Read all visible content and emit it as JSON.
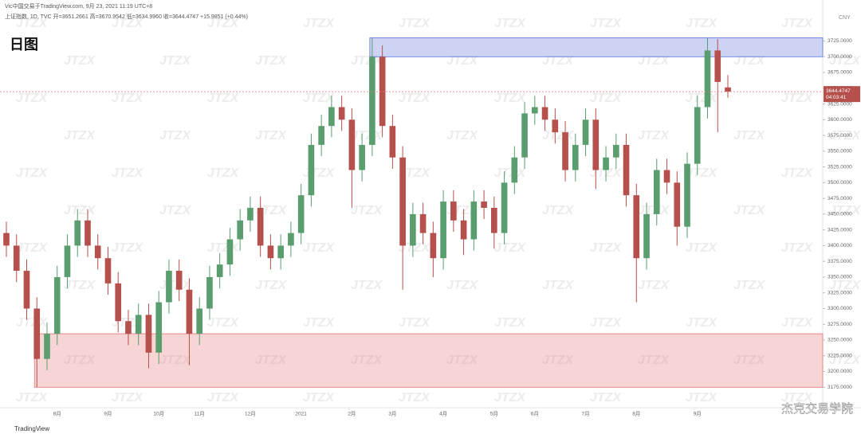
{
  "chart_data": {
    "type": "candlestick",
    "title": "日图",
    "header": "Vic中国交易于TradingView.com, 9月 23, 2021 11:19 UTC+8",
    "symbol_line": "上证指数, 1D, TVC  开=3651.2661  高=3670.9542  低=3634.9960  收=3644.4747  +15.9851 (+0.44%)",
    "currency": "CNY",
    "price_label": "3644.4747",
    "countdown": "04:03:41",
    "watermark": "JTZX",
    "footer": "TradingView",
    "credit": "杰克交易学院",
    "up_color": "#5a9e6f",
    "down_color": "#b5504c",
    "categories": [
      null,
      null,
      null,
      null,
      null,
      "8月",
      null,
      null,
      null,
      null,
      "9月",
      null,
      null,
      null,
      null,
      "10月",
      null,
      null,
      null,
      "11月",
      null,
      null,
      null,
      null,
      "12月",
      null,
      null,
      null,
      null,
      "2021",
      null,
      null,
      null,
      null,
      "2月",
      null,
      null,
      null,
      "3月",
      null,
      null,
      null,
      null,
      "4月",
      null,
      null,
      null,
      null,
      "5月",
      null,
      null,
      null,
      "6月",
      null,
      null,
      null,
      null,
      "7月",
      null,
      null,
      null,
      null,
      "8月",
      null,
      null,
      null,
      null,
      null,
      "9月",
      null,
      null,
      null
    ],
    "open": [
      3420,
      3400,
      3360,
      3300,
      3220,
      3260,
      3350,
      3400,
      3440,
      3400,
      3380,
      3340,
      3280,
      3260,
      3290,
      3230,
      3310,
      3360,
      3330,
      3260,
      3300,
      3350,
      3370,
      3410,
      3440,
      3460,
      3400,
      3380,
      3400,
      3420,
      3480,
      3560,
      3590,
      3620,
      3600,
      3520,
      3560,
      3700,
      3590,
      3540,
      3400,
      3450,
      3420,
      3380,
      3470,
      3440,
      3410,
      3470,
      3460,
      3420,
      3500,
      3540,
      3610,
      3620,
      3600,
      3580,
      3520,
      3560,
      3600,
      3520,
      3540,
      3560,
      3480,
      3380,
      3450,
      3520,
      3500,
      3430,
      3530,
      3620,
      3710,
      3651.2661
    ],
    "high": [
      3438,
      3418,
      3378,
      3318,
      3278,
      3368,
      3418,
      3458,
      3458,
      3418,
      3398,
      3358,
      3298,
      3308,
      3308,
      3328,
      3378,
      3378,
      3348,
      3318,
      3368,
      3388,
      3428,
      3458,
      3478,
      3478,
      3418,
      3418,
      3438,
      3498,
      3578,
      3608,
      3638,
      3638,
      3618,
      3578,
      3730,
      3718,
      3608,
      3558,
      3468,
      3468,
      3438,
      3488,
      3488,
      3458,
      3488,
      3488,
      3478,
      3518,
      3558,
      3628,
      3638,
      3638,
      3618,
      3598,
      3578,
      3618,
      3618,
      3558,
      3578,
      3578,
      3498,
      3468,
      3538,
      3538,
      3518,
      3548,
      3638,
      3730,
      3728,
      3670.9542
    ],
    "low": [
      3382,
      3342,
      3282,
      3175,
      3202,
      3242,
      3332,
      3382,
      3382,
      3362,
      3322,
      3262,
      3242,
      3242,
      3205,
      3212,
      3292,
      3312,
      3210,
      3242,
      3282,
      3332,
      3352,
      3392,
      3422,
      3382,
      3362,
      3362,
      3382,
      3402,
      3462,
      3542,
      3572,
      3582,
      3460,
      3502,
      3542,
      3572,
      3522,
      3330,
      3382,
      3402,
      3350,
      3362,
      3422,
      3385,
      3392,
      3442,
      3395,
      3402,
      3482,
      3522,
      3592,
      3582,
      3562,
      3502,
      3502,
      3542,
      3490,
      3502,
      3522,
      3462,
      3310,
      3362,
      3432,
      3482,
      3400,
      3412,
      3512,
      3602,
      3580,
      3634.996
    ],
    "close": [
      3400,
      3360,
      3300,
      3220,
      3260,
      3350,
      3400,
      3440,
      3400,
      3380,
      3340,
      3280,
      3260,
      3290,
      3230,
      3310,
      3360,
      3330,
      3260,
      3300,
      3350,
      3370,
      3410,
      3440,
      3460,
      3400,
      3380,
      3400,
      3420,
      3480,
      3560,
      3590,
      3620,
      3600,
      3520,
      3560,
      3700,
      3590,
      3540,
      3400,
      3450,
      3420,
      3380,
      3470,
      3440,
      3410,
      3470,
      3460,
      3420,
      3500,
      3540,
      3610,
      3620,
      3600,
      3580,
      3520,
      3560,
      3600,
      3520,
      3540,
      3560,
      3480,
      3380,
      3450,
      3520,
      3500,
      3430,
      3530,
      3620,
      3710,
      3660,
      3644.4747
    ],
    "zones": [
      {
        "from": 3700,
        "to": 3730,
        "color": "#5a6fd8"
      },
      {
        "from": 3175,
        "to": 3260,
        "color": "#e57373"
      }
    ],
    "ylim": [
      3145,
      3780
    ],
    "yticks": [
      {
        "value": 3175,
        "label": "3175.0000"
      },
      {
        "value": 3200,
        "label": "3200.0000"
      },
      {
        "value": 3225,
        "label": "3225.0000"
      },
      {
        "value": 3250,
        "label": "3250.0000"
      },
      {
        "value": 3275,
        "label": "3275.0000"
      },
      {
        "value": 3300,
        "label": "3300.0000"
      },
      {
        "value": 3325,
        "label": "3325.0000"
      },
      {
        "value": 3350,
        "label": "3350.0000"
      },
      {
        "value": 3375,
        "label": "3375.0000"
      },
      {
        "value": 3400,
        "label": "3400.0000"
      },
      {
        "value": 3425,
        "label": "3425.0000"
      },
      {
        "value": 3450,
        "label": "3450.0000"
      },
      {
        "value": 3475,
        "label": "3475.0000"
      },
      {
        "value": 3500,
        "label": "3500.0000"
      },
      {
        "value": 3525,
        "label": "3525.0000"
      },
      {
        "value": 3550,
        "label": "3550.0000"
      },
      {
        "value": 3575,
        "label": "3575.0000"
      },
      {
        "value": 3600,
        "label": "3600.0000"
      },
      {
        "value": 3625,
        "label": "3625.0000"
      },
      {
        "value": 3650,
        "label": "3650.0000"
      },
      {
        "value": 3675,
        "label": "3675.0000"
      },
      {
        "value": 3700,
        "label": "3700.0000"
      },
      {
        "value": 3725,
        "label": "3725.0000"
      }
    ]
  }
}
